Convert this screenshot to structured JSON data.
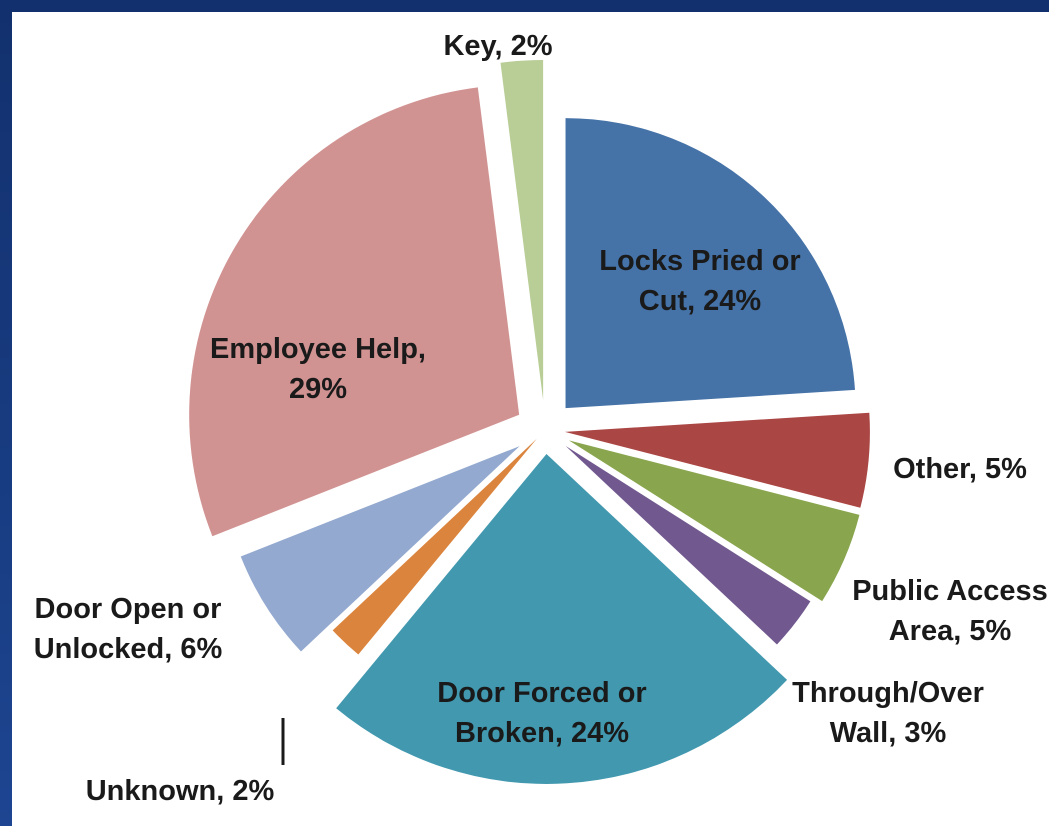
{
  "chart_data": {
    "type": "pie",
    "exploded": true,
    "categories": [
      "Locks Pried or Cut",
      "Other",
      "Public Access Area",
      "Through/Over Wall",
      "Door Forced or Broken",
      "Unknown",
      "Door Open or Unlocked",
      "Employee Help",
      "Key"
    ],
    "values": [
      24,
      5,
      5,
      3,
      24,
      2,
      6,
      29,
      2
    ],
    "unit": "%",
    "colors": [
      "#4572a7",
      "#aa4643",
      "#89a54e",
      "#71588f",
      "#4198af",
      "#db843d",
      "#93a9cf",
      "#d19392",
      "#b9cd96"
    ],
    "labels": [
      [
        "Locks Pried or",
        "Cut, 24%"
      ],
      [
        "Other, 5%"
      ],
      [
        "Public Access",
        "Area, 5%"
      ],
      [
        "Through/Over",
        "Wall, 3%"
      ],
      [
        "Door Forced or",
        "Broken, 24%"
      ],
      [
        "Unknown, 2%"
      ],
      [
        "Door Open or",
        "Unlocked, 6%"
      ],
      [
        "Employee Help,",
        "29%"
      ],
      [
        "Key, 2%"
      ]
    ],
    "legend": "none",
    "title": ""
  }
}
